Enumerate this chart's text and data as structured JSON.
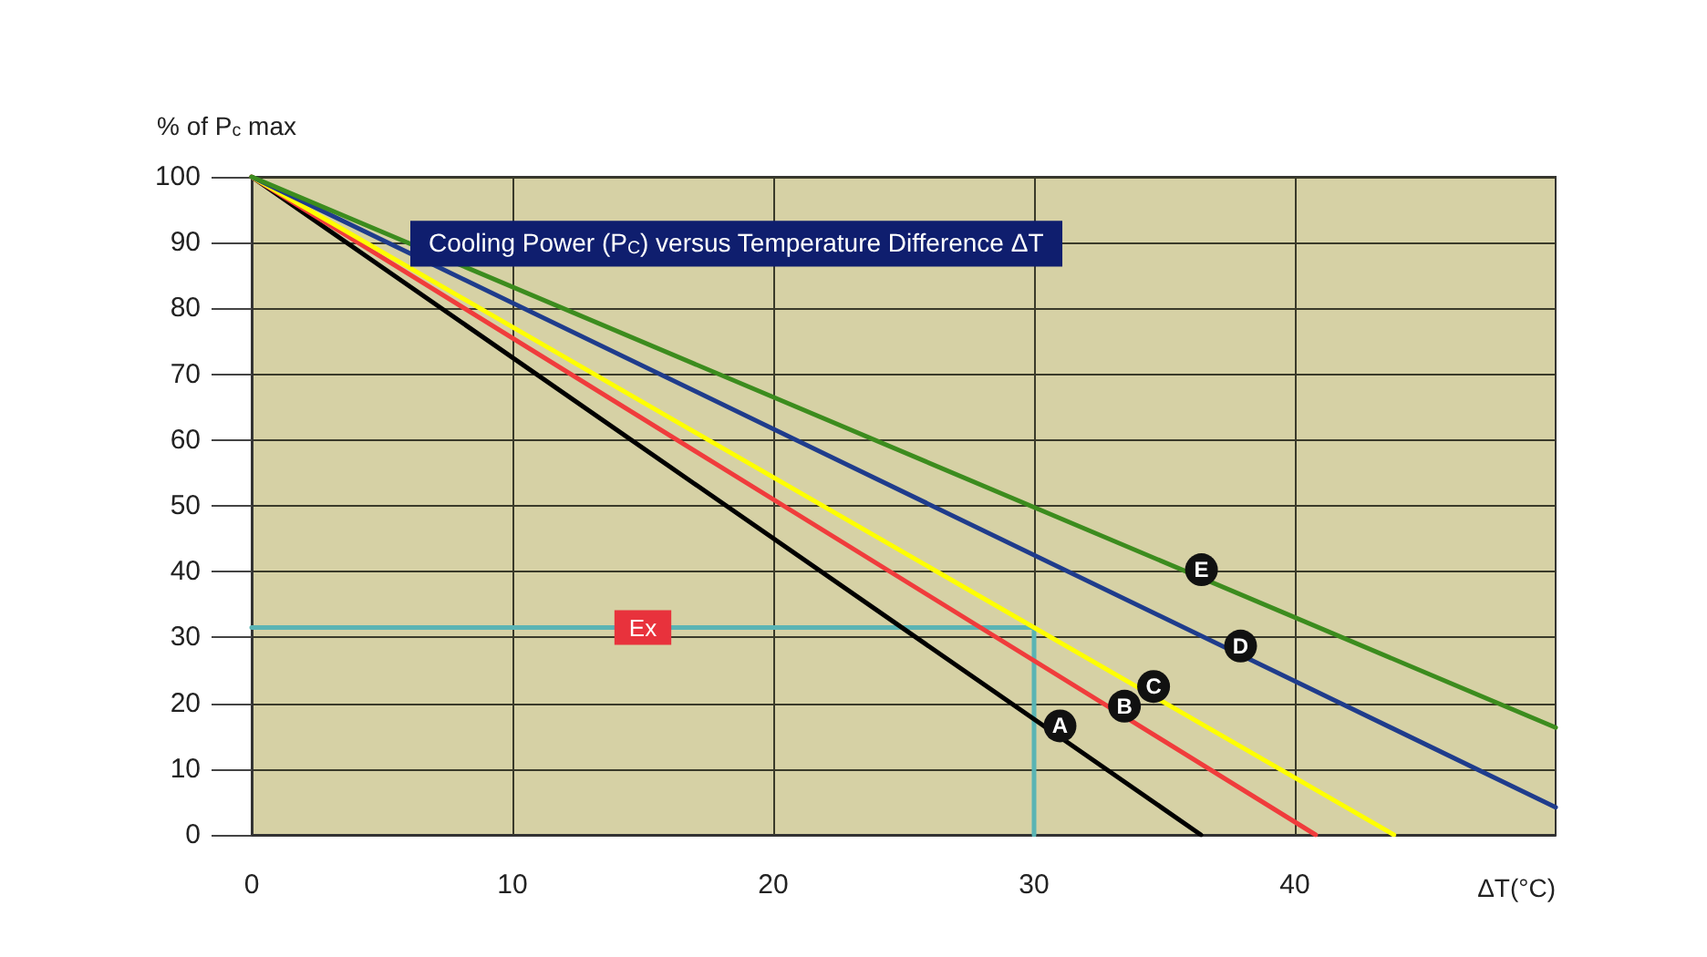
{
  "chart_data": {
    "type": "line",
    "title": "Cooling Power (P$_{C}$) versus Temperature Difference ΔT",
    "xlabel": "ΔT(°C)",
    "ylabel": "% of P$_{c}$ max",
    "xlim": [
      0,
      50
    ],
    "xticks": [
      0,
      10,
      20,
      30,
      40
    ],
    "ylim": [
      0,
      100
    ],
    "yticks": [
      0,
      10,
      20,
      30,
      40,
      50,
      60,
      70,
      80,
      90,
      100
    ],
    "grid": true,
    "marker": "none",
    "line_style": "solid",
    "series": [
      {
        "name": "A",
        "color": "#000000",
        "x": [
          0,
          36.4
        ],
        "values": [
          100,
          0
        ]
      },
      {
        "name": "B",
        "color": "#f03c3c",
        "x": [
          0,
          40.8
        ],
        "values": [
          100,
          0
        ]
      },
      {
        "name": "C",
        "color": "#ffff00",
        "x": [
          0,
          43.8
        ],
        "values": [
          100,
          0
        ]
      },
      {
        "name": "D",
        "color": "#1f3c8c",
        "x": [
          0,
          50
        ],
        "values": [
          100,
          4.2
        ]
      },
      {
        "name": "E",
        "color": "#3c8c1e",
        "x": [
          0,
          50
        ],
        "values": [
          100,
          16.3
        ]
      },
      {
        "name": "Ex",
        "color": "#5ab4b4",
        "x": [
          0,
          15,
          30,
          30
        ],
        "values": [
          31.5,
          31.5,
          31.5,
          0
        ]
      }
    ]
  }
}
